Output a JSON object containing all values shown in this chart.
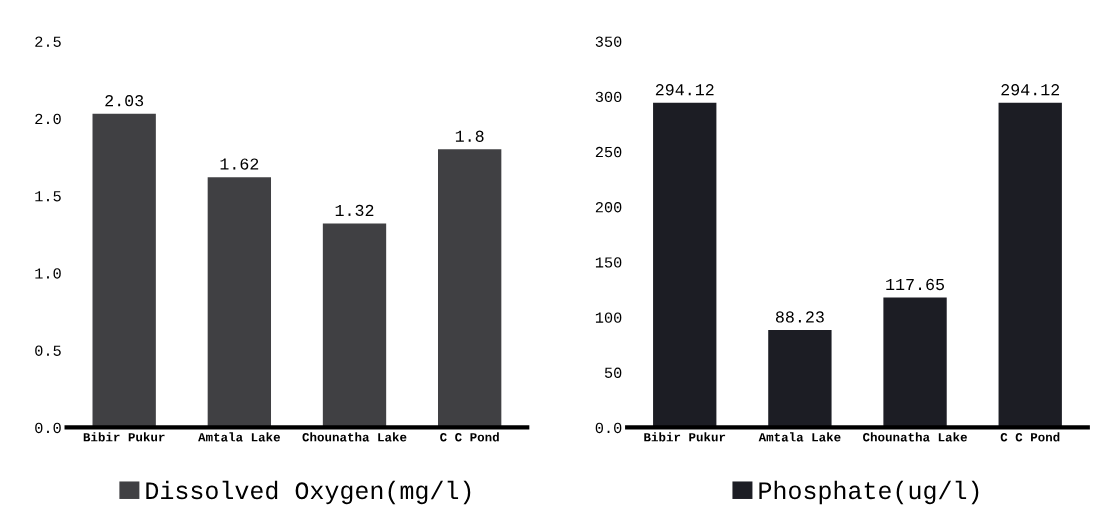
{
  "chart_data": [
    {
      "type": "bar",
      "categories": [
        "Bibir Pukur",
        "Amtala Lake",
        "Chounatha Lake",
        "C C Pond"
      ],
      "series": [
        {
          "name": "Dissolved Oxygen(mg/l)",
          "color": "#404043",
          "values": [
            2.03,
            1.62,
            1.32,
            1.8
          ]
        }
      ],
      "value_labels": [
        "2.03",
        "1.62",
        "1.32",
        "1.8"
      ],
      "ylim": [
        0,
        2.5
      ],
      "yticks": [
        {
          "value": 0,
          "label": "0.0"
        },
        0.5,
        {
          "value": 1,
          "label": "1.0"
        },
        1.5,
        {
          "value": 2,
          "label": "2.0"
        },
        2.5
      ],
      "grid": false,
      "legend": "bottom"
    },
    {
      "type": "bar",
      "categories": [
        "Bibir Pukur",
        "Amtala Lake",
        "Chounatha Lake",
        "C C Pond"
      ],
      "series": [
        {
          "name": "Phosphate(ug/l)",
          "color": "#1c1d24",
          "values": [
            294.12,
            88.23,
            117.65,
            294.12
          ]
        }
      ],
      "data_labels": true,
      "ylim": [
        0,
        350
      ],
      "yticks": [
        {
          "value": 0,
          "label": "0.0"
        },
        50,
        100,
        150,
        200,
        250,
        300,
        350
      ],
      "grid": false,
      "legend": "bottom"
    }
  ]
}
